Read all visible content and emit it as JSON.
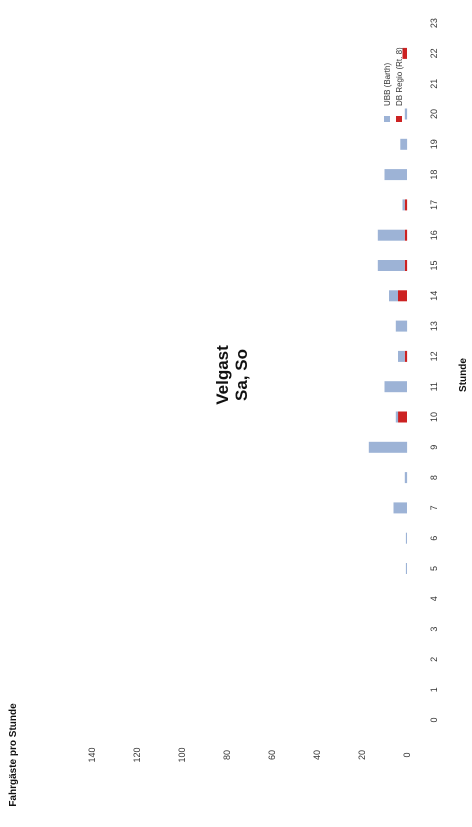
{
  "chart_data": {
    "type": "bar",
    "stacked": true,
    "orientation": "rotated-90",
    "title": [
      "Velgast",
      "Sa, So"
    ],
    "xlabel": "Stunde",
    "ylabel": "Fahrgäste pro Stunde",
    "categories": [
      "0",
      "1",
      "2",
      "3",
      "4",
      "5",
      "6",
      "7",
      "8",
      "9",
      "10",
      "11",
      "12",
      "13",
      "14",
      "15",
      "16",
      "17",
      "18",
      "19",
      "20",
      "21",
      "22",
      "23"
    ],
    "ylim": [
      0,
      140
    ],
    "yticks": [
      "0",
      "20",
      "40",
      "60",
      "80",
      "100",
      "120",
      "140"
    ],
    "grid": false,
    "legend_position": "top-right",
    "series": [
      {
        "name": "DB Regio (Rt. 8)",
        "color": "#cc2222",
        "values": [
          0,
          0,
          0,
          0,
          0,
          0,
          0,
          0,
          0,
          0,
          4,
          0,
          1,
          0,
          4,
          1,
          1,
          1,
          0,
          0,
          0,
          0,
          2,
          0
        ]
      },
      {
        "name": "UBB (Barth)",
        "color": "#9db3d6",
        "values": [
          0,
          0,
          0,
          0,
          0,
          0.5,
          0.5,
          6,
          1,
          17,
          1,
          10,
          3,
          5,
          4,
          12,
          12,
          1,
          10,
          3,
          1,
          0,
          0,
          0
        ]
      }
    ]
  }
}
